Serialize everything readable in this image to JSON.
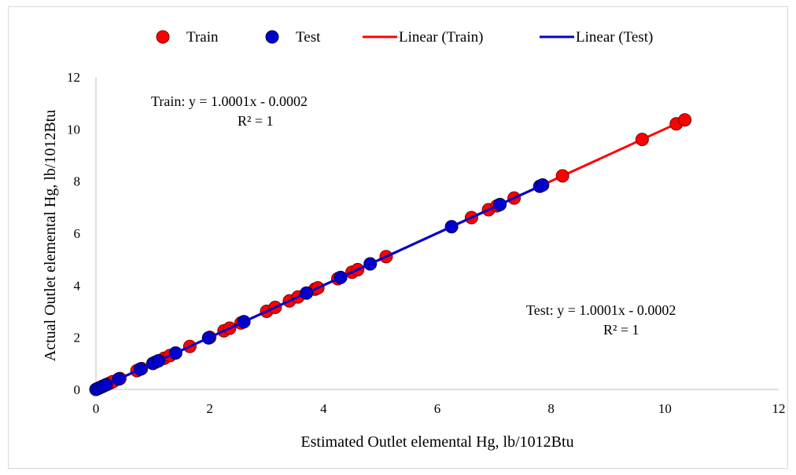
{
  "chart_data": {
    "type": "scatter",
    "title": "",
    "xlabel": "Estimated Outlet elemental Hg, lb/1012Btu",
    "ylabel": "Actual Outlet elemental Hg, lb/1012Btu",
    "xlim": [
      0,
      12
    ],
    "ylim": [
      0,
      12
    ],
    "xticks": [
      "0",
      "2",
      "4",
      "6",
      "8",
      "10",
      "12"
    ],
    "yticks": [
      "0",
      "2",
      "4",
      "6",
      "8",
      "10",
      "12"
    ],
    "grid": false,
    "legend_position": "top",
    "legend": [
      "Train",
      "Test",
      "Linear (Train)",
      "Linear (Test)"
    ],
    "series": [
      {
        "name": "Train",
        "kind": "points",
        "color": "#ff0000",
        "x": [
          0.02,
          0.06,
          0.1,
          0.15,
          0.2,
          0.25,
          0.3,
          0.42,
          0.72,
          0.8,
          1.05,
          1.2,
          1.3,
          1.65,
          2.0,
          2.25,
          2.35,
          2.55,
          3.0,
          3.15,
          3.4,
          3.55,
          3.85,
          3.9,
          4.25,
          4.5,
          4.6,
          5.1,
          6.6,
          6.9,
          7.05,
          7.35,
          8.2,
          9.6,
          10.2,
          10.35
        ],
        "y": [
          0.02,
          0.06,
          0.1,
          0.15,
          0.2,
          0.25,
          0.3,
          0.42,
          0.72,
          0.8,
          1.05,
          1.2,
          1.3,
          1.65,
          2.0,
          2.25,
          2.35,
          2.55,
          3.0,
          3.15,
          3.4,
          3.55,
          3.85,
          3.9,
          4.25,
          4.5,
          4.6,
          5.1,
          6.6,
          6.9,
          7.05,
          7.35,
          8.2,
          9.6,
          10.2,
          10.35
        ]
      },
      {
        "name": "Test",
        "kind": "points",
        "color": "#0000cc",
        "x": [
          0.0,
          0.05,
          0.12,
          0.18,
          0.4,
          0.78,
          1.0,
          1.1,
          1.4,
          1.98,
          2.6,
          3.7,
          4.3,
          4.82,
          6.25,
          7.1,
          7.8,
          7.85
        ],
        "y": [
          0.0,
          0.05,
          0.12,
          0.18,
          0.4,
          0.78,
          1.0,
          1.1,
          1.4,
          1.98,
          2.6,
          3.7,
          4.3,
          4.82,
          6.25,
          7.1,
          7.8,
          7.85
        ]
      },
      {
        "name": "Linear (Train)",
        "kind": "line",
        "color": "#ff0000",
        "x": [
          0,
          10.35
        ],
        "y": [
          -0.0002,
          10.3508
        ]
      },
      {
        "name": "Linear (Test)",
        "kind": "line",
        "color": "#0000cc",
        "x": [
          0,
          7.85
        ],
        "y": [
          -0.0002,
          7.8506
        ]
      }
    ],
    "annotations": {
      "train_equation": "Train: y = 1.0001x - 0.0002",
      "train_r2": "R² = 1",
      "test_equation": "Test: y = 1.0001x - 0.0002",
      "test_r2": "R² = 1"
    }
  }
}
